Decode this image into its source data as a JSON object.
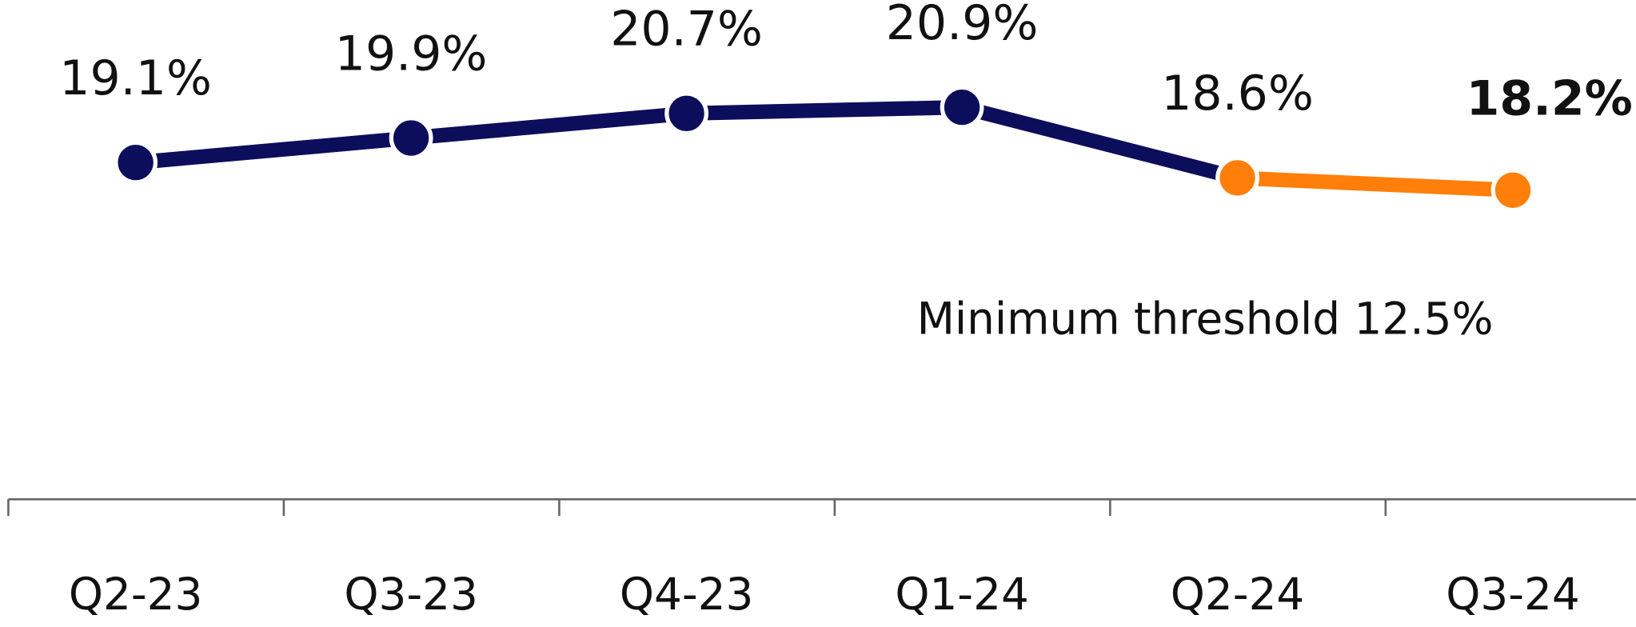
{
  "chart_data": {
    "type": "line",
    "categories": [
      "Q2-23",
      "Q3-23",
      "Q4-23",
      "Q1-24",
      "Q2-24",
      "Q3-24"
    ],
    "values": [
      19.1,
      19.9,
      20.7,
      20.9,
      18.6,
      18.2
    ],
    "value_labels": [
      "19.1%",
      "19.9%",
      "20.7%",
      "20.9%",
      "18.6%",
      "18.2%"
    ],
    "colors": [
      "#0c0e5c",
      "#0c0e5c",
      "#0c0e5c",
      "#0c0e5c",
      "#ff7f0a",
      "#ff7f0a"
    ],
    "label_weights": [
      "normal",
      "normal",
      "normal",
      "normal",
      "normal",
      "bold"
    ],
    "annotation": "Minimum threshold 12.5%",
    "annotation_color": "#0c0e5c",
    "ylim": [
      15,
      22
    ]
  }
}
